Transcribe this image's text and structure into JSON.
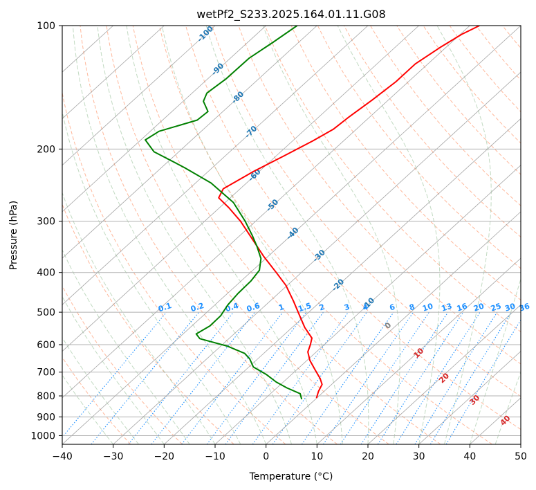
{
  "chart_data": {
    "type": "line",
    "title": "wetPf2_S233.2025.164.01.11.G08",
    "xlabel": "Temperature (°C)",
    "ylabel": "Pressure (hPa)",
    "xlim": [
      -40,
      50
    ],
    "ylim": [
      1050,
      100
    ],
    "y_scale": "log",
    "x_ticks": [
      "-40",
      "-30",
      "-20",
      "-10",
      "0",
      "10",
      "20",
      "30",
      "40",
      "50"
    ],
    "y_ticks": [
      "100",
      "200",
      "300",
      "400",
      "500",
      "600",
      "700",
      "800",
      "900",
      "1000"
    ],
    "grid": true,
    "series": [
      {
        "color": "#ff0000",
        "points": [
          [
            9.9,
            810
          ],
          [
            10.3,
            780
          ],
          [
            11.0,
            750
          ],
          [
            10.6,
            725
          ],
          [
            9.6,
            690
          ],
          [
            8.6,
            655
          ],
          [
            8.2,
            625
          ],
          [
            8.7,
            600
          ],
          [
            9.0,
            578
          ],
          [
            7.6,
            545
          ],
          [
            6.6,
            510
          ],
          [
            5.4,
            470
          ],
          [
            3.9,
            430
          ],
          [
            2.0,
            400
          ],
          [
            -0.5,
            365
          ],
          [
            -2.8,
            330
          ],
          [
            -5.0,
            300
          ],
          [
            -7.3,
            278
          ],
          [
            -9.3,
            263
          ],
          [
            -8.4,
            250
          ],
          [
            -2.5,
            227
          ],
          [
            3.5,
            208
          ],
          [
            9.2,
            191
          ],
          [
            13.2,
            179
          ],
          [
            16.3,
            167
          ],
          [
            20.8,
            152
          ],
          [
            25.5,
            137
          ],
          [
            29.3,
            124
          ],
          [
            34.2,
            113
          ],
          [
            38.4,
            105
          ],
          [
            41.9,
            100
          ]
        ],
        "style": "solid"
      },
      {
        "color": "#008000",
        "points": [
          [
            7.0,
            815
          ],
          [
            6.7,
            790
          ],
          [
            4.1,
            765
          ],
          [
            2.0,
            740
          ],
          [
            0.1,
            710
          ],
          [
            -2.5,
            680
          ],
          [
            -3.2,
            650
          ],
          [
            -4.2,
            630
          ],
          [
            -7.6,
            605
          ],
          [
            -13.0,
            580
          ],
          [
            -13.7,
            565
          ],
          [
            -11.0,
            540
          ],
          [
            -8.9,
            510
          ],
          [
            -7.5,
            480
          ],
          [
            -5.5,
            450
          ],
          [
            -3.0,
            420
          ],
          [
            -1.3,
            395
          ],
          [
            -1.0,
            370
          ],
          [
            -1.8,
            345
          ],
          [
            -2.7,
            325
          ],
          [
            -4.1,
            300
          ],
          [
            -6.4,
            270
          ],
          [
            -10.8,
            242
          ],
          [
            -16.0,
            222
          ],
          [
            -22.0,
            203
          ],
          [
            -23.7,
            190
          ],
          [
            -21.0,
            181
          ],
          [
            -13.5,
            170
          ],
          [
            -11.4,
            162
          ],
          [
            -12.3,
            153
          ],
          [
            -11.6,
            146
          ],
          [
            -7.9,
            135
          ],
          [
            -3.3,
            120
          ],
          [
            1.3,
            110
          ],
          [
            6.1,
            100
          ]
        ],
        "style": "solid"
      }
    ],
    "isotherm_labels": [
      "-100",
      "-90",
      "-80",
      "-70",
      "-60",
      "-50",
      "-40",
      "-30",
      "-20",
      "-10"
    ],
    "mixing_ratio_labels": [
      "0.1",
      "0.2",
      "0.4",
      "0.6",
      "1",
      "1.5",
      "2",
      "3",
      "4",
      "6",
      "8",
      "10",
      "13",
      "16",
      "20",
      "25",
      "30",
      "36"
    ],
    "moist_adiabat_labels": [
      "0",
      "10",
      "20",
      "30",
      "40"
    ],
    "colors": {
      "temperature": "#ff0000",
      "dewpoint": "#008000",
      "isotherm": "#7f7f7f",
      "dry_adiabat": "#ffa07a",
      "moist_adiabat": "#8fbc8f",
      "mixing_ratio": "#1e90ff",
      "isotherm_label": "#1f77b4",
      "moist_label": "#d62728",
      "zero_label": "#7f7f7f"
    }
  }
}
